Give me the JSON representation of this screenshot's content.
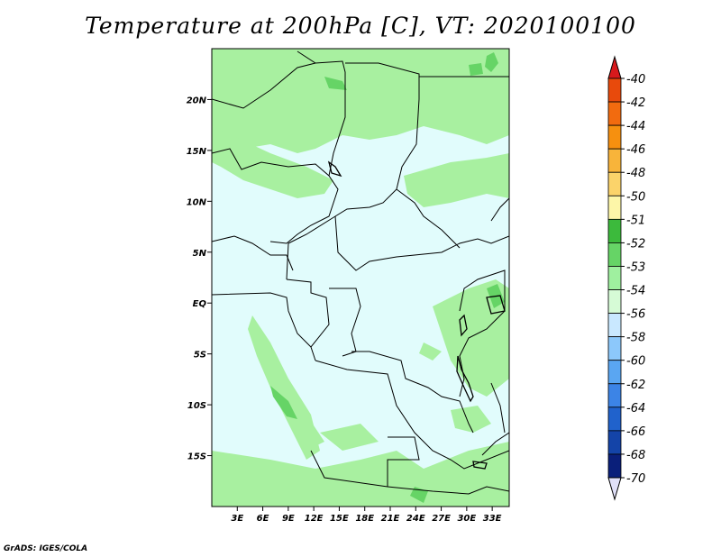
{
  "title": "Temperature at 200hPa [C], VT: 2020100100",
  "credit": "GrADS: IGES/COLA",
  "chart_data": {
    "type": "heatmap",
    "variable": "Temperature at 200hPa",
    "units": "C",
    "valid_time": "2020100100",
    "lon_range": [
      0,
      35
    ],
    "lat_range": [
      -20,
      25
    ],
    "x_ticks": [
      "3E",
      "6E",
      "9E",
      "12E",
      "15E",
      "18E",
      "21E",
      "24E",
      "27E",
      "30E",
      "33E"
    ],
    "x_tick_values": [
      3,
      6,
      9,
      12,
      15,
      18,
      21,
      24,
      27,
      30,
      33
    ],
    "y_ticks": [
      "20N",
      "15N",
      "10N",
      "5N",
      "EQ",
      "5S",
      "10S",
      "15S"
    ],
    "y_tick_values": [
      20,
      15,
      10,
      5,
      0,
      -5,
      -10,
      -15
    ],
    "colorbar": {
      "levels": [
        "-40",
        "-42",
        "-44",
        "-46",
        "-48",
        "-50",
        "-51",
        "-52",
        "-53",
        "-54",
        "-56",
        "-58",
        "-60",
        "-62",
        "-64",
        "-66",
        "-68",
        "-70"
      ],
      "colors": [
        "#d7191c",
        "#e84a0c",
        "#f26b0f",
        "#f6900f",
        "#f8b43a",
        "#fbd36a",
        "#fdf6a8",
        "#3cba3c",
        "#66d466",
        "#9ff09f",
        "#d6fbd6",
        "#c9e8ff",
        "#8cc8fb",
        "#5aa6f2",
        "#3c84e6",
        "#2062cc",
        "#1444a8",
        "#0a1f7a",
        "#e0e0f8"
      ],
      "over_color": "#d7191c",
      "under_color": "#e0e0f8"
    },
    "dominant_field_color": "#e1fcfc"
  }
}
